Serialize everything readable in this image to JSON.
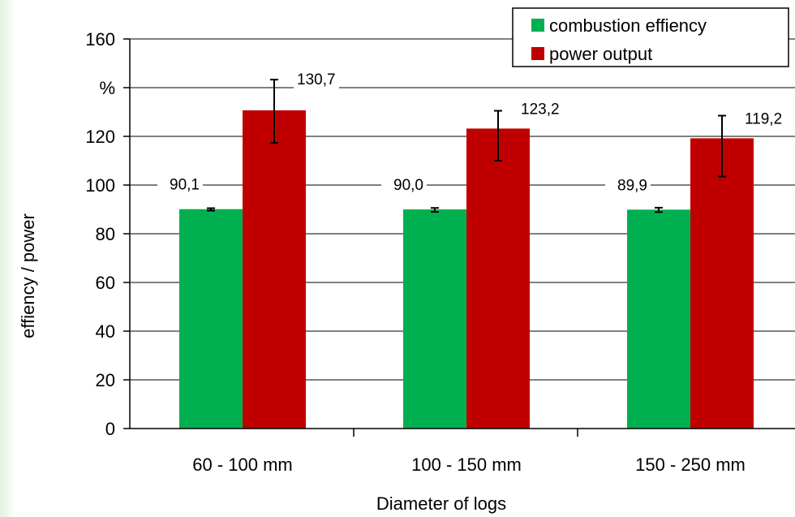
{
  "chart_data": {
    "type": "bar",
    "categories": [
      "60 - 100 mm",
      "100 - 150 mm",
      "150 - 250 mm"
    ],
    "series": [
      {
        "name": "combustion effiency",
        "color": "#00b050",
        "values": [
          90.1,
          90.0,
          89.9
        ],
        "labels": [
          "90,1",
          "90,0",
          "89,9"
        ],
        "error_low": [
          89.5,
          89.0,
          88.9
        ],
        "error_high": [
          90.5,
          90.6,
          90.7
        ]
      },
      {
        "name": "power output",
        "color": "#c00000",
        "values": [
          130.7,
          123.2,
          119.2
        ],
        "labels": [
          "130,7",
          "123,2",
          "119,2"
        ],
        "error_low": [
          117.3,
          110.0,
          103.5
        ],
        "error_high": [
          143.3,
          130.5,
          128.5
        ]
      }
    ],
    "ylim": [
      0,
      160
    ],
    "yticks": [
      "0",
      "20",
      "40",
      "60",
      "80",
      "100",
      "120",
      "%",
      "160"
    ],
    "ytick_values": [
      0,
      20,
      40,
      60,
      80,
      100,
      120,
      140,
      160
    ],
    "xlabel": "Diameter of logs",
    "ylabel": "effiency / power",
    "grid": true,
    "legend": "top-right"
  }
}
